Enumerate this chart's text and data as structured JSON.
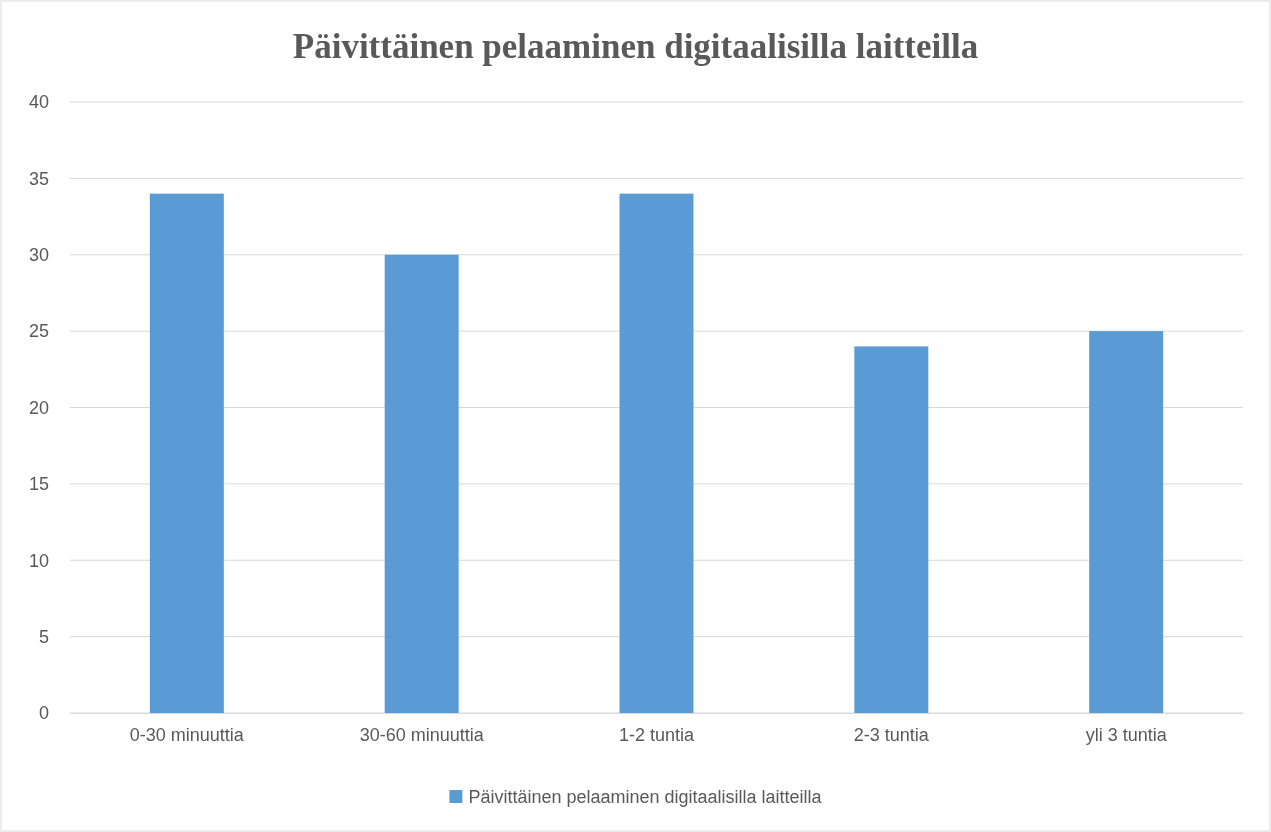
{
  "chart_data": {
    "type": "bar",
    "title": "Päivittäinen pelaaminen digitaalisilla laitteilla",
    "categories": [
      "0-30 minuuttia",
      "30-60 minuuttia",
      "1-2 tuntia",
      "2-3 tuntia",
      "yli 3 tuntia"
    ],
    "series": [
      {
        "name": "Päivittäinen pelaaminen digitaalisilla laitteilla",
        "color": "#5b9bd5",
        "values": [
          34,
          30,
          34,
          24,
          25
        ]
      }
    ],
    "ylim": [
      0,
      40
    ],
    "yticks": [
      0,
      5,
      10,
      15,
      20,
      25,
      30,
      35,
      40
    ],
    "grid": "y",
    "legend": "bottom"
  }
}
